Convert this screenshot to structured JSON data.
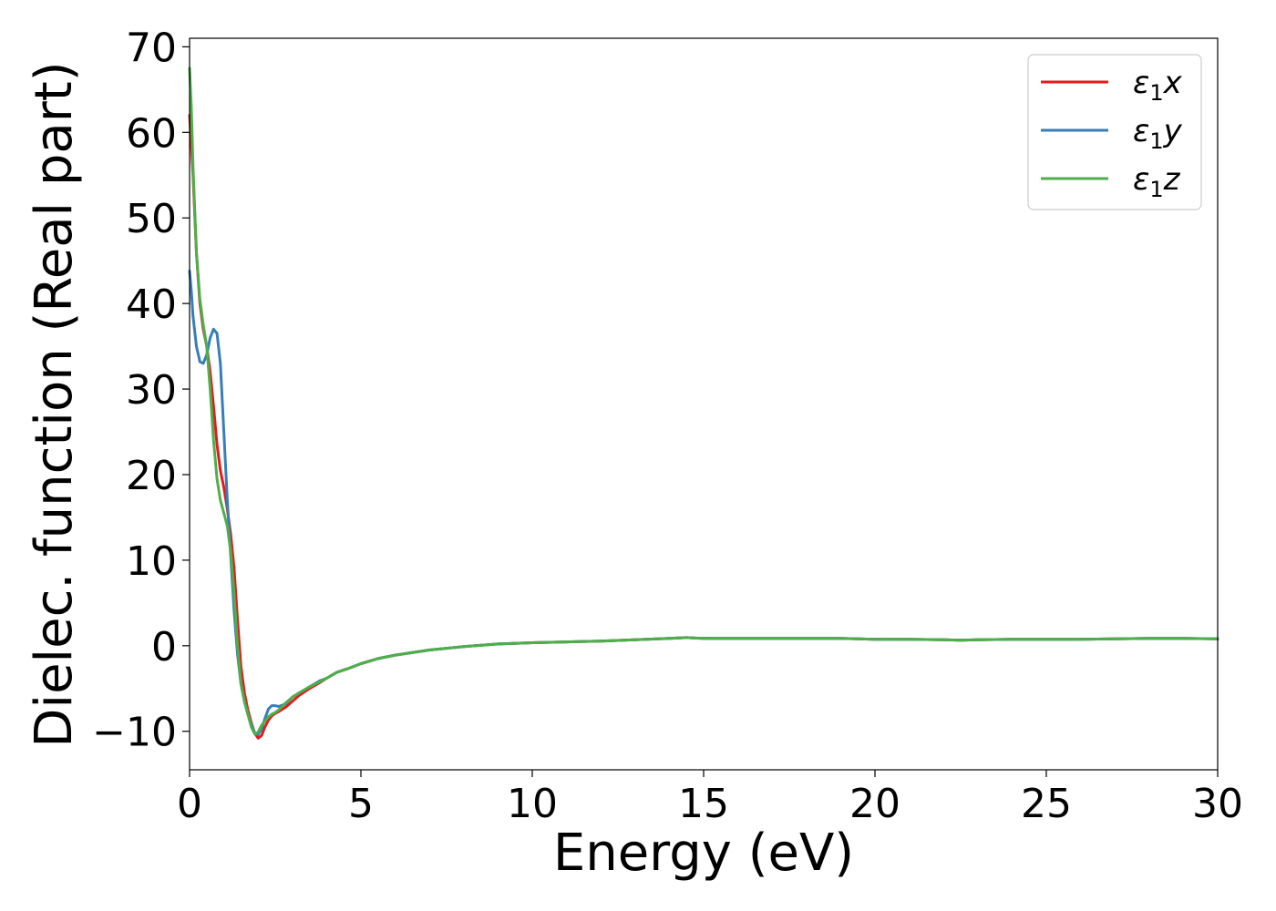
{
  "chart_data": {
    "type": "line",
    "xlabel": "Energy (eV)",
    "ylabel": "Dielec. function (Real part)",
    "xlim": [
      0,
      30
    ],
    "ylim": [
      -14.5,
      71
    ],
    "xticks": [
      0,
      5,
      10,
      15,
      20,
      25,
      30
    ],
    "yticks": [
      -10,
      0,
      10,
      20,
      30,
      40,
      50,
      60,
      70
    ],
    "xtick_labels": [
      "0",
      "5",
      "10",
      "15",
      "20",
      "25",
      "30"
    ],
    "ytick_labels": [
      "−10",
      "0",
      "10",
      "20",
      "30",
      "40",
      "50",
      "60",
      "70"
    ],
    "grid": false,
    "legend": {
      "placement": "top-right"
    },
    "series": [
      {
        "name": "ε₁x",
        "legend_base": "ε",
        "legend_sub": "1",
        "legend_var": "x",
        "color": "#e41a1c",
        "x": [
          0.0,
          0.1,
          0.2,
          0.3,
          0.4,
          0.5,
          0.6,
          0.7,
          0.8,
          0.9,
          1.0,
          1.1,
          1.2,
          1.3,
          1.4,
          1.5,
          1.6,
          1.7,
          1.8,
          1.9,
          2.0,
          2.1,
          2.2,
          2.3,
          2.4,
          2.5,
          2.6,
          2.8,
          3.0,
          3.2,
          3.5,
          3.8,
          4.0,
          4.3,
          4.6,
          5.0,
          5.5,
          6.0,
          7.0,
          8.0,
          9.0,
          10.0,
          11.0,
          12.0,
          13.0,
          14.0,
          14.5,
          15.0,
          16.0,
          17.0,
          18.0,
          19.0,
          20.0,
          21.0,
          22.0,
          22.5,
          23.0,
          24.0,
          25.0,
          26.0,
          27.0,
          28.0,
          29.0,
          30.0
        ],
        "y": [
          62.0,
          55.0,
          46.0,
          40.0,
          37.0,
          35.0,
          32.0,
          28.0,
          23.5,
          20.5,
          18.5,
          16.0,
          13.0,
          9.0,
          3.0,
          -2.5,
          -5.5,
          -7.5,
          -9.0,
          -10.2,
          -10.8,
          -10.5,
          -9.5,
          -8.7,
          -8.2,
          -7.9,
          -7.7,
          -7.2,
          -6.5,
          -5.8,
          -5.0,
          -4.3,
          -3.8,
          -3.1,
          -2.7,
          -2.1,
          -1.5,
          -1.1,
          -0.5,
          -0.1,
          0.2,
          0.35,
          0.45,
          0.55,
          0.7,
          0.85,
          0.95,
          0.85,
          0.85,
          0.85,
          0.85,
          0.85,
          0.75,
          0.75,
          0.7,
          0.65,
          0.7,
          0.75,
          0.75,
          0.75,
          0.8,
          0.85,
          0.85,
          0.8
        ]
      },
      {
        "name": "ε₁y",
        "legend_base": "ε",
        "legend_sub": "1",
        "legend_var": "y",
        "color": "#377eb8",
        "x": [
          0.0,
          0.05,
          0.1,
          0.2,
          0.3,
          0.4,
          0.5,
          0.6,
          0.7,
          0.8,
          0.9,
          1.0,
          1.1,
          1.2,
          1.3,
          1.4,
          1.5,
          1.6,
          1.7,
          1.8,
          1.9,
          2.0,
          2.1,
          2.2,
          2.3,
          2.4,
          2.5,
          2.6,
          2.8,
          3.0,
          3.2,
          3.5,
          3.8,
          4.0,
          4.3,
          4.6,
          5.0,
          5.5,
          6.0,
          7.0,
          8.0,
          9.0,
          10.0,
          11.0,
          12.0,
          13.0,
          14.0,
          14.5,
          15.0,
          16.0,
          17.0,
          18.0,
          19.0,
          20.0,
          21.0,
          22.0,
          22.5,
          23.0,
          24.0,
          25.0,
          26.0,
          27.0,
          28.0,
          29.0,
          30.0
        ],
        "y": [
          43.8,
          41.5,
          38.5,
          35.0,
          33.2,
          33.0,
          34.0,
          36.0,
          37.0,
          36.5,
          33.0,
          25.0,
          17.0,
          10.5,
          4.0,
          -1.0,
          -4.5,
          -6.5,
          -8.0,
          -9.2,
          -10.2,
          -10.4,
          -9.7,
          -8.5,
          -7.4,
          -7.0,
          -7.0,
          -7.1,
          -6.8,
          -6.0,
          -5.5,
          -4.8,
          -4.1,
          -3.8,
          -3.1,
          -2.7,
          -2.1,
          -1.5,
          -1.1,
          -0.5,
          -0.1,
          0.2,
          0.35,
          0.45,
          0.55,
          0.7,
          0.85,
          0.95,
          0.85,
          0.85,
          0.85,
          0.85,
          0.85,
          0.75,
          0.75,
          0.7,
          0.65,
          0.7,
          0.75,
          0.75,
          0.75,
          0.8,
          0.85,
          0.85,
          0.8
        ]
      },
      {
        "name": "ε₁z",
        "legend_base": "ε",
        "legend_sub": "1",
        "legend_var": "z",
        "color": "#4daf4a",
        "x": [
          0.0,
          0.05,
          0.1,
          0.2,
          0.3,
          0.4,
          0.5,
          0.6,
          0.7,
          0.8,
          0.9,
          1.0,
          1.1,
          1.2,
          1.3,
          1.4,
          1.5,
          1.6,
          1.7,
          1.8,
          1.9,
          2.0,
          2.1,
          2.2,
          2.3,
          2.4,
          2.5,
          2.6,
          2.8,
          3.0,
          3.2,
          3.5,
          3.8,
          4.0,
          4.3,
          4.6,
          5.0,
          5.5,
          6.0,
          7.0,
          8.0,
          9.0,
          10.0,
          11.0,
          12.0,
          13.0,
          14.0,
          14.5,
          15.0,
          16.0,
          17.0,
          18.0,
          19.0,
          20.0,
          21.0,
          22.0,
          22.5,
          23.0,
          24.0,
          25.0,
          26.0,
          27.0,
          28.0,
          29.0,
          30.0
        ],
        "y": [
          67.5,
          63.0,
          56.0,
          46.0,
          40.5,
          37.5,
          35.0,
          30.0,
          24.0,
          19.5,
          17.0,
          15.5,
          14.0,
          11.0,
          6.0,
          0.0,
          -4.5,
          -6.5,
          -8.0,
          -9.5,
          -10.3,
          -10.1,
          -9.3,
          -8.8,
          -8.3,
          -8.0,
          -7.8,
          -7.5,
          -6.7,
          -6.0,
          -5.5,
          -4.8,
          -4.2,
          -3.8,
          -3.1,
          -2.7,
          -2.1,
          -1.5,
          -1.1,
          -0.5,
          -0.1,
          0.2,
          0.35,
          0.45,
          0.55,
          0.7,
          0.85,
          0.95,
          0.85,
          0.85,
          0.85,
          0.85,
          0.85,
          0.75,
          0.75,
          0.7,
          0.65,
          0.7,
          0.75,
          0.75,
          0.75,
          0.8,
          0.85,
          0.85,
          0.8
        ]
      }
    ]
  }
}
